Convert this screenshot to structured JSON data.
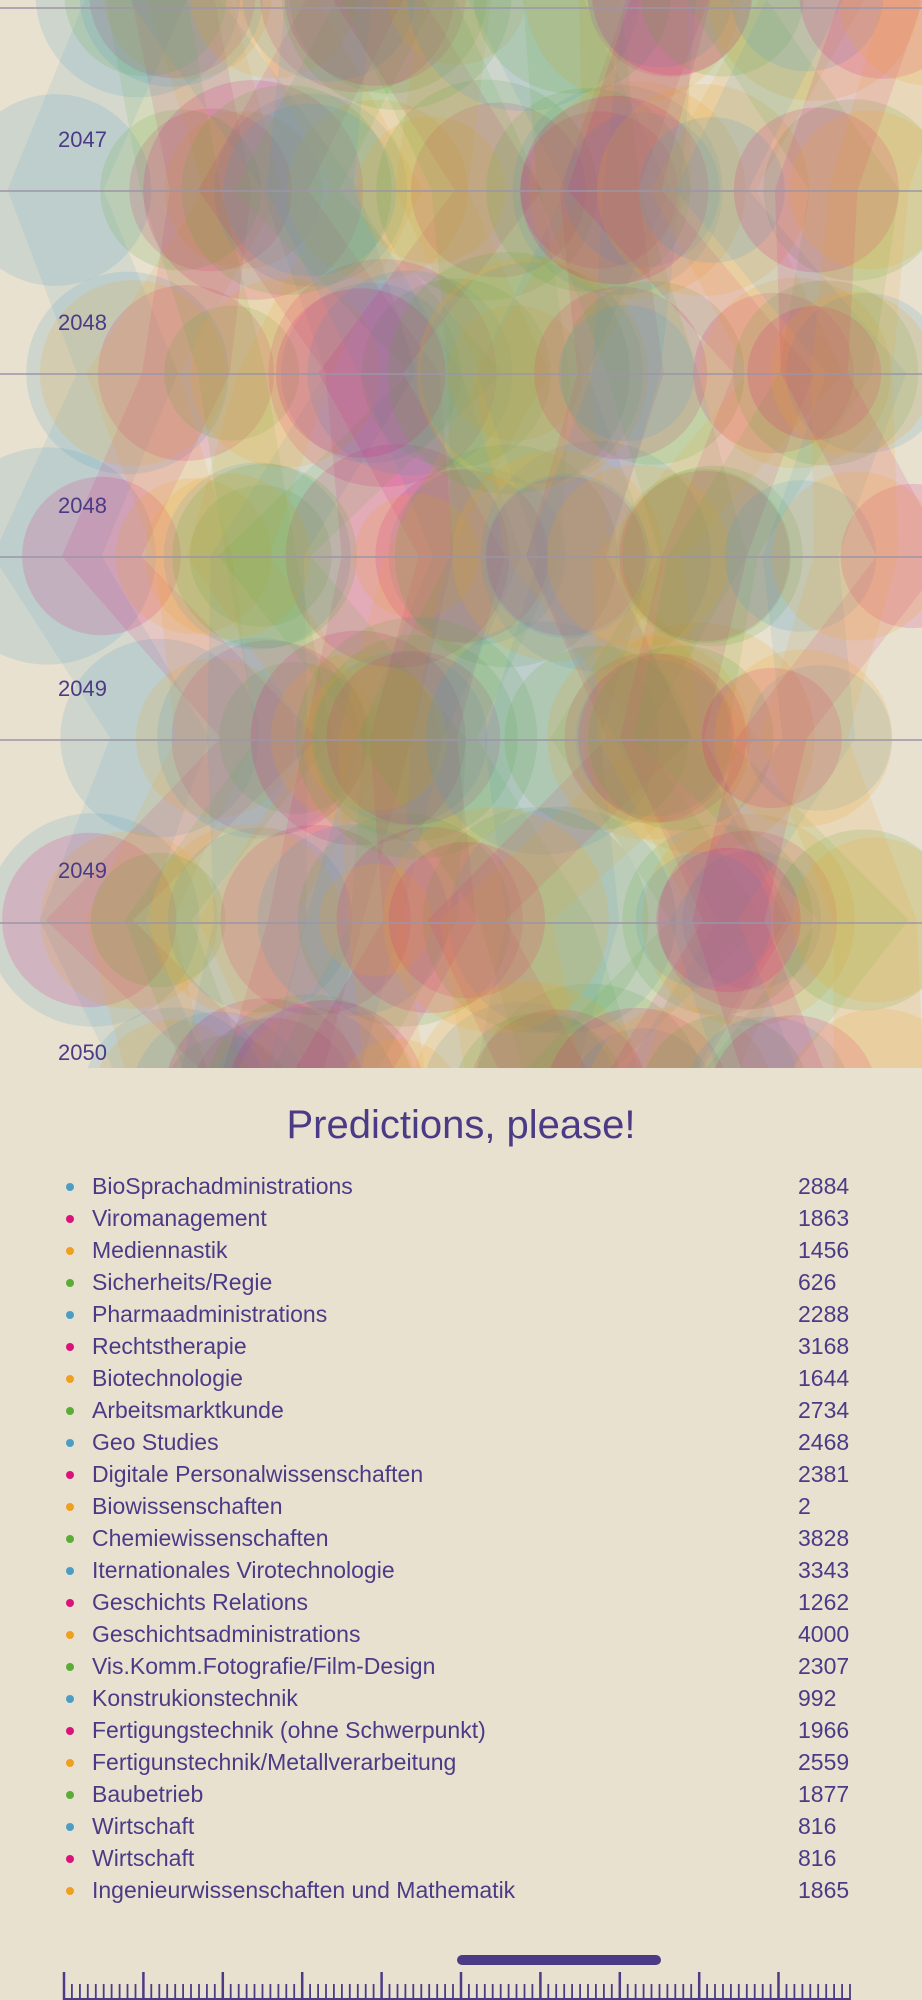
{
  "chart_data": {
    "type": "scatter",
    "title": "Predictions, please!",
    "years": [
      "2047",
      "2048",
      "2048",
      "2049",
      "2049",
      "2050"
    ],
    "series": [
      {
        "name": "BioSprachadministrations",
        "value": 2884,
        "color": "#4a9ec4"
      },
      {
        "name": "Viromanagement",
        "value": 1863,
        "color": "#d8137a"
      },
      {
        "name": "Mediennastik",
        "value": 1456,
        "color": "#f0a020"
      },
      {
        "name": "Sicherheits/Regie",
        "value": 626,
        "color": "#5bab3a"
      },
      {
        "name": "Pharmaadministrations",
        "value": 2288,
        "color": "#4a9ec4"
      },
      {
        "name": "Rechtstherapie",
        "value": 3168,
        "color": "#d8137a"
      },
      {
        "name": "Biotechnologie",
        "value": 1644,
        "color": "#f0a020"
      },
      {
        "name": "Arbeitsmarktkunde",
        "value": 2734,
        "color": "#5bab3a"
      },
      {
        "name": "Geo Studies",
        "value": 2468,
        "color": "#4a9ec4"
      },
      {
        "name": "Digitale Personalwissenschaften",
        "value": 2381,
        "color": "#d8137a"
      },
      {
        "name": "Biowissenschaften",
        "value": 2,
        "color": "#f0a020"
      },
      {
        "name": "Chemiewissenschaften",
        "value": 3828,
        "color": "#5bab3a"
      },
      {
        "name": "Iternationales Virotechnologie",
        "value": 3343,
        "color": "#4a9ec4"
      },
      {
        "name": "Geschichts Relations",
        "value": 1262,
        "color": "#d8137a"
      },
      {
        "name": "Geschichtsadministrations",
        "value": 4000,
        "color": "#f0a020"
      },
      {
        "name": "Vis.Komm.Fotografie/Film-Design",
        "value": 2307,
        "color": "#5bab3a"
      },
      {
        "name": "Konstrukionstechnik",
        "value": 992,
        "color": "#4a9ec4"
      },
      {
        "name": "Fertigungstechnik (ohne Schwerpunkt)",
        "value": 1966,
        "color": "#d8137a"
      },
      {
        "name": "Fertigunstechnik/Metallverarbeitung",
        "value": 2559,
        "color": "#f0a020"
      },
      {
        "name": "Baubetrieb",
        "value": 1877,
        "color": "#5bab3a"
      },
      {
        "name": "Wirtschaft",
        "value": 816,
        "color": "#4a9ec4"
      },
      {
        "name": "Wirtschaft",
        "value": 816,
        "color": "#d8137a"
      },
      {
        "name": "Ingenieurwissenschaften und Mathematik",
        "value": 1865,
        "color": "#f0a020"
      }
    ]
  },
  "slider": {
    "ticks_minor": 99,
    "major_every": 10,
    "selected_fraction_start": 0.5,
    "selected_fraction_end": 0.76
  }
}
